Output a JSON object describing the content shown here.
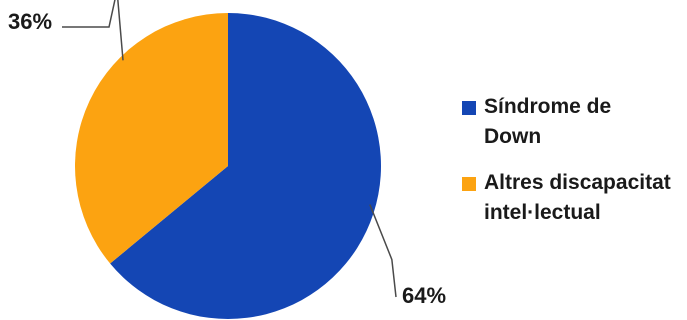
{
  "chart_data": {
    "type": "pie",
    "title": "",
    "categories": [
      "Síndrome de Down",
      "Altres discapacitat intel·lectual"
    ],
    "values": [
      64,
      36
    ],
    "labels": [
      "64%",
      "36%"
    ],
    "colors": [
      "#1446b4",
      "#fca311"
    ],
    "legend": {
      "placement": "right",
      "entries": [
        {
          "line1": "Síndrome de",
          "line2": "Down",
          "color": "#1446b4"
        },
        {
          "line1": "Altres discapacitat",
          "line2": "intel·lectual",
          "color": "#fca311"
        }
      ]
    }
  }
}
